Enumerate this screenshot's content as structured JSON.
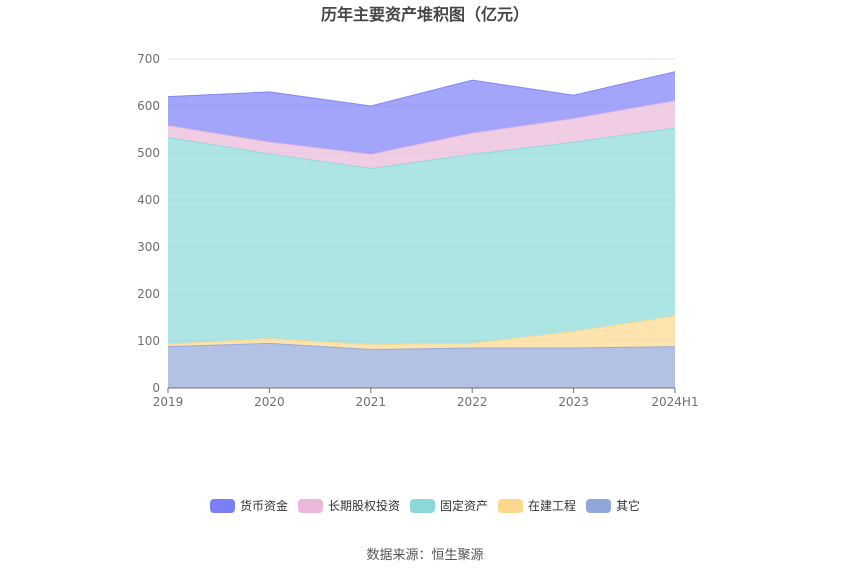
{
  "chart_data": {
    "type": "area",
    "stacked": true,
    "title": "历年主要资产堆积图（亿元）",
    "categories": [
      "2019",
      "2020",
      "2021",
      "2022",
      "2023",
      "2024H1"
    ],
    "ylim": [
      0,
      700
    ],
    "yticks": [
      0,
      100,
      200,
      300,
      400,
      500,
      600,
      700
    ],
    "grid": true,
    "legend_position": "bottom",
    "series": [
      {
        "name": "其它",
        "color": "#91a7d9",
        "values": [
          88,
          95,
          82,
          85,
          85,
          88
        ]
      },
      {
        "name": "在建工程",
        "color": "#fcd88c",
        "values": [
          5,
          10,
          10,
          10,
          35,
          65
        ]
      },
      {
        "name": "固定资产",
        "color": "#8ad8d8",
        "values": [
          440,
          393,
          375,
          402,
          403,
          400
        ]
      },
      {
        "name": "长期股权投资",
        "color": "#e9b8da",
        "values": [
          25,
          25,
          30,
          45,
          50,
          58
        ]
      },
      {
        "name": "货币资金",
        "color": "#7b7ff7",
        "values": [
          62,
          107,
          103,
          113,
          50,
          62
        ]
      }
    ],
    "legend_order": [
      "货币资金",
      "长期股权投资",
      "固定资产",
      "在建工程",
      "其它"
    ],
    "source": "数据来源：恒生聚源"
  }
}
